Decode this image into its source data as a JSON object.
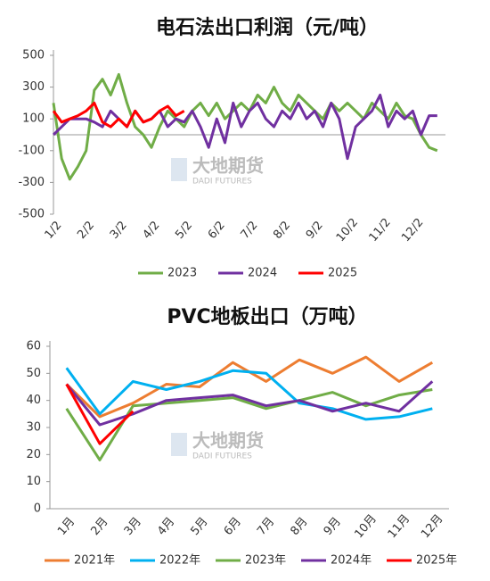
{
  "chart_data": [
    {
      "type": "line",
      "title": "电石法出口利润（元/吨）",
      "watermark": "大地期货",
      "watermark_sub": "DADI FUTURES",
      "categories": [
        "1/2",
        null,
        null,
        null,
        "2/2",
        null,
        null,
        null,
        "3/2",
        null,
        null,
        null,
        "4/2",
        null,
        null,
        null,
        "5/2",
        null,
        null,
        null,
        "6/2",
        null,
        null,
        null,
        "7/2",
        null,
        null,
        null,
        "8/2",
        null,
        null,
        null,
        "9/2",
        null,
        null,
        null,
        "10/2",
        null,
        null,
        null,
        "11/2",
        null,
        null,
        null,
        "12/2",
        null,
        null,
        null
      ],
      "ylim": [
        -500,
        500
      ],
      "yticks": [
        -500,
        -300,
        -100,
        100,
        300,
        500
      ],
      "grid": false,
      "series": [
        {
          "name": "2023",
          "color": "#70AD47",
          "values": [
            200,
            -150,
            -280,
            -200,
            -100,
            280,
            350,
            250,
            380,
            200,
            50,
            0,
            -80,
            50,
            150,
            100,
            50,
            150,
            200,
            120,
            200,
            100,
            150,
            200,
            150,
            250,
            200,
            300,
            200,
            150,
            250,
            200,
            150,
            100,
            200,
            150,
            200,
            150,
            100,
            200,
            150,
            100,
            200,
            120,
            100,
            0,
            -80,
            -100
          ]
        },
        {
          "name": "2024",
          "color": "#7030A0",
          "values": [
            0,
            50,
            100,
            100,
            100,
            80,
            50,
            150,
            100,
            50,
            150,
            80,
            100,
            150,
            50,
            100,
            80,
            150,
            50,
            -80,
            100,
            -50,
            200,
            50,
            150,
            200,
            100,
            50,
            150,
            100,
            200,
            100,
            150,
            50,
            200,
            100,
            -150,
            50,
            100,
            150,
            250,
            50,
            150,
            100,
            150,
            0,
            120,
            120
          ]
        },
        {
          "name": "2025",
          "color": "#FF0000",
          "values": [
            150,
            80,
            100,
            120,
            150,
            200,
            80,
            50,
            100,
            50,
            150,
            80,
            100,
            150,
            180,
            120,
            150,
            null,
            null,
            null,
            null,
            null,
            null,
            null,
            null,
            null,
            null,
            null,
            null,
            null,
            null,
            null,
            null,
            null,
            null,
            null,
            null,
            null,
            null,
            null,
            null,
            null,
            null,
            null,
            null,
            null,
            null,
            null
          ]
        }
      ]
    },
    {
      "type": "line",
      "title": "PVC地板出口（万吨）",
      "watermark": "大地期货",
      "watermark_sub": "DADI FUTURES",
      "categories": [
        "1月",
        "2月",
        "3月",
        "4月",
        "5月",
        "6月",
        "7月",
        "8月",
        "9月",
        "10月",
        "11月",
        "12月"
      ],
      "ylim": [
        0,
        60
      ],
      "yticks": [
        0,
        10,
        20,
        30,
        40,
        50,
        60
      ],
      "grid": false,
      "series": [
        {
          "name": "2021年",
          "color": "#ED7D31",
          "values": [
            46,
            34,
            39,
            46,
            45,
            54,
            47,
            55,
            50,
            56,
            47,
            54
          ]
        },
        {
          "name": "2022年",
          "color": "#00B0F0",
          "values": [
            52,
            35,
            47,
            44,
            47,
            51,
            50,
            39,
            37,
            33,
            34,
            37
          ]
        },
        {
          "name": "2023年",
          "color": "#70AD47",
          "values": [
            37,
            18,
            38,
            39,
            40,
            41,
            37,
            40,
            43,
            38,
            42,
            44
          ]
        },
        {
          "name": "2024年",
          "color": "#7030A0",
          "values": [
            46,
            31,
            35,
            40,
            41,
            42,
            38,
            40,
            36,
            39,
            36,
            47
          ]
        },
        {
          "name": "2025年",
          "color": "#FF0000",
          "values": [
            46,
            24,
            36,
            null,
            null,
            null,
            null,
            null,
            null,
            null,
            null,
            null
          ]
        }
      ]
    }
  ]
}
